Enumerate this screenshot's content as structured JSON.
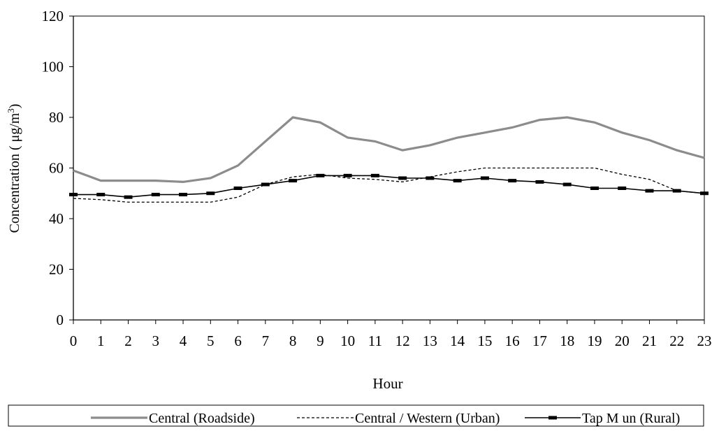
{
  "chart_data": {
    "type": "line",
    "title": "",
    "xlabel": "Hour",
    "ylabel": "Concentration ( μg/m",
    "ylabel_sup": "3",
    "ylabel_close": ")",
    "xlim": [
      0,
      23
    ],
    "ylim": [
      0,
      120
    ],
    "x": [
      0,
      1,
      2,
      3,
      4,
      5,
      6,
      7,
      8,
      9,
      10,
      11,
      12,
      13,
      14,
      15,
      16,
      17,
      18,
      19,
      20,
      21,
      22,
      23
    ],
    "x_ticks": [
      "0",
      "1",
      "2",
      "3",
      "4",
      "5",
      "6",
      "7",
      "8",
      "9",
      "10",
      "11",
      "12",
      "13",
      "14",
      "15",
      "16",
      "17",
      "18",
      "19",
      "20",
      "21",
      "22",
      "23"
    ],
    "y_ticks": [
      "0",
      "20",
      "40",
      "60",
      "80",
      "100",
      "120"
    ],
    "grid": false,
    "legend_position": "bottom",
    "series": [
      {
        "name": "Central (Roadside)",
        "color": "#8c8c8c",
        "style": "solid-thick",
        "values": [
          59,
          55,
          55,
          55,
          54.5,
          56,
          61,
          70.5,
          80,
          78,
          72,
          70.5,
          67,
          69,
          72,
          74,
          76,
          79,
          80,
          78,
          74,
          71,
          67,
          64
        ]
      },
      {
        "name": "Central / Western (Urban)",
        "color": "#000000",
        "style": "dashed",
        "values": [
          48,
          47.5,
          46.5,
          46.5,
          46.5,
          46.5,
          48.5,
          53.5,
          56.5,
          57.5,
          56,
          55.5,
          54.5,
          56.5,
          58.5,
          60,
          60,
          60,
          60,
          60,
          57.5,
          55.5,
          51,
          50
        ]
      },
      {
        "name": "Tap M un (Rural)",
        "color": "#000000",
        "style": "solid-marker",
        "values": [
          49.5,
          49.5,
          48.5,
          49.5,
          49.5,
          50,
          52,
          53.5,
          55,
          57,
          57,
          57,
          56,
          56,
          55,
          56,
          55,
          54.5,
          53.5,
          52,
          52,
          51,
          51,
          50
        ]
      }
    ]
  }
}
